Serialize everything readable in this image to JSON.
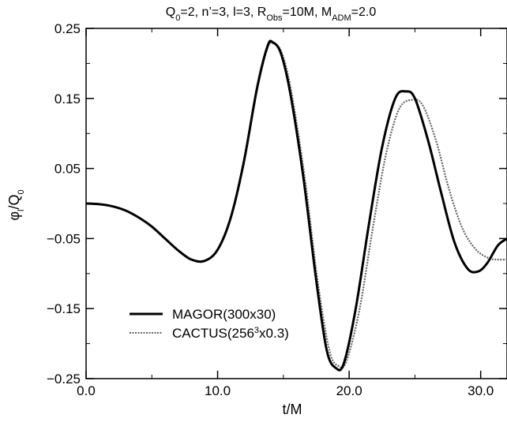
{
  "chart_data": {
    "type": "line",
    "title": {
      "parts": [
        {
          "t": "Q",
          "sub": false
        },
        {
          "t": "0",
          "sub": true
        },
        {
          "t": "=2, n’=3, l=3, R",
          "sub": false
        },
        {
          "t": "Obs",
          "sub": true
        },
        {
          "t": "=10M, M",
          "sub": false
        },
        {
          "t": "ADM",
          "sub": true
        },
        {
          "t": "=2.0",
          "sub": false
        }
      ]
    },
    "xlabel": "t/M",
    "ylabel": {
      "parts": [
        {
          "t": "φ",
          "sub": false
        },
        {
          "t": "l",
          "sub": true
        },
        {
          "t": "/Q",
          "sub": false
        },
        {
          "t": "0",
          "sub": true
        }
      ]
    },
    "xlim": [
      0,
      32
    ],
    "ylim": [
      -0.25,
      0.25
    ],
    "x_ticks": [
      0,
      10,
      20,
      30
    ],
    "x_tick_labels": [
      "0.0",
      "10.0",
      "20.0",
      "30.0"
    ],
    "y_ticks": [
      0.25,
      0.15,
      0.05,
      -0.05,
      -0.15,
      -0.25
    ],
    "y_tick_labels": [
      "0.25",
      "0.15",
      "0.05",
      "−0.05",
      "−0.15",
      "−0.25"
    ],
    "grid": false,
    "legend_position": "bottom-left",
    "series": [
      {
        "name": "MAGOR(300x30)",
        "style": "solid",
        "color": "#000000",
        "points": [
          [
            0,
            0.0
          ],
          [
            1,
            -0.001
          ],
          [
            2,
            -0.004
          ],
          [
            3,
            -0.01
          ],
          [
            4,
            -0.02
          ],
          [
            5,
            -0.033
          ],
          [
            6,
            -0.05
          ],
          [
            7,
            -0.067
          ],
          [
            8,
            -0.08
          ],
          [
            9,
            -0.082
          ],
          [
            10,
            -0.066
          ],
          [
            11,
            -0.02
          ],
          [
            12,
            0.06
          ],
          [
            13,
            0.165
          ],
          [
            13.8,
            0.225
          ],
          [
            14.2,
            0.23
          ],
          [
            14.8,
            0.215
          ],
          [
            15.5,
            0.16
          ],
          [
            16.5,
            0.04
          ],
          [
            17.5,
            -0.11
          ],
          [
            18.3,
            -0.21
          ],
          [
            19.0,
            -0.235
          ],
          [
            19.6,
            -0.228
          ],
          [
            20.5,
            -0.15
          ],
          [
            21.5,
            -0.03
          ],
          [
            22.5,
            0.08
          ],
          [
            23.5,
            0.15
          ],
          [
            24.3,
            0.16
          ],
          [
            25.0,
            0.15
          ],
          [
            26.0,
            0.09
          ],
          [
            27.0,
            0.015
          ],
          [
            28.0,
            -0.055
          ],
          [
            29.0,
            -0.093
          ],
          [
            29.8,
            -0.097
          ],
          [
            30.5,
            -0.085
          ],
          [
            31.3,
            -0.06
          ],
          [
            32.0,
            -0.05
          ]
        ]
      },
      {
        "name": "CACTUS(256",
        "name_sup": "3",
        "name_rest": "x0.3)",
        "style": "dotted",
        "color": "#666666",
        "points": [
          [
            0,
            0.0
          ],
          [
            1,
            -0.001
          ],
          [
            2,
            -0.004
          ],
          [
            3,
            -0.01
          ],
          [
            4,
            -0.02
          ],
          [
            5,
            -0.033
          ],
          [
            6,
            -0.05
          ],
          [
            7,
            -0.067
          ],
          [
            8,
            -0.08
          ],
          [
            9,
            -0.082
          ],
          [
            10,
            -0.066
          ],
          [
            11,
            -0.021
          ],
          [
            12,
            0.058
          ],
          [
            13,
            0.162
          ],
          [
            13.8,
            0.222
          ],
          [
            14.3,
            0.228
          ],
          [
            14.9,
            0.214
          ],
          [
            15.6,
            0.16
          ],
          [
            16.6,
            0.04
          ],
          [
            17.6,
            -0.11
          ],
          [
            18.5,
            -0.21
          ],
          [
            19.2,
            -0.232
          ],
          [
            19.8,
            -0.225
          ],
          [
            20.8,
            -0.15
          ],
          [
            21.8,
            -0.035
          ],
          [
            22.8,
            0.07
          ],
          [
            23.8,
            0.135
          ],
          [
            24.8,
            0.148
          ],
          [
            25.6,
            0.14
          ],
          [
            26.6,
            0.09
          ],
          [
            27.6,
            0.02
          ],
          [
            28.6,
            -0.035
          ],
          [
            29.6,
            -0.065
          ],
          [
            30.6,
            -0.078
          ],
          [
            31.3,
            -0.08
          ],
          [
            32.0,
            -0.08
          ]
        ]
      }
    ]
  }
}
